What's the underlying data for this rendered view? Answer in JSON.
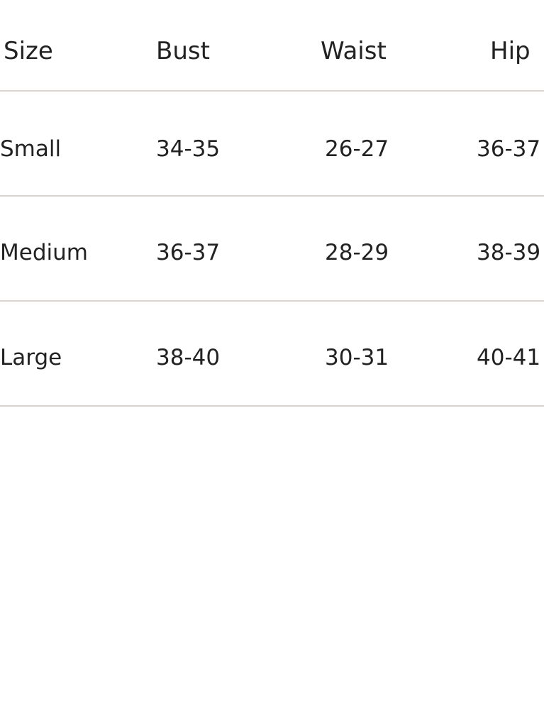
{
  "table": {
    "headers": [
      "Size",
      "Bust",
      "Waist",
      "Hip"
    ],
    "rows": [
      [
        "Small",
        "34-35",
        "26-27",
        "36-37"
      ],
      [
        "Medium",
        "36-37",
        "28-29",
        "38-39"
      ],
      [
        "Large",
        "38-40",
        "30-31",
        "40-41"
      ]
    ]
  }
}
